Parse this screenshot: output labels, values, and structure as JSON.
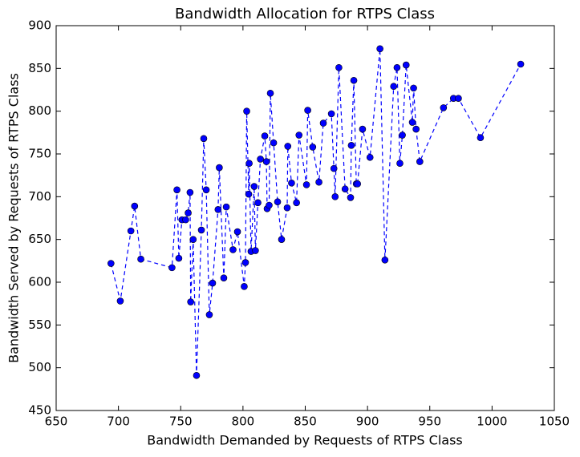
{
  "chart_data": {
    "type": "line",
    "title": "Bandwidth Allocation for RTPS Class",
    "xlabel": "Bandwidth Demanded by Requests of RTPS Class",
    "ylabel": "Bandwidth Served by Requests of RTPS Class",
    "x": [
      694,
      701.5,
      710,
      713,
      718,
      743,
      747,
      748.5,
      751,
      754,
      756,
      757.5,
      758,
      760,
      762.7,
      766.6,
      768.5,
      770.5,
      773,
      775.6,
      780,
      781,
      784.6,
      786.6,
      792,
      795.6,
      801,
      802,
      803,
      804.6,
      805,
      806.5,
      809,
      810,
      812,
      814,
      817.5,
      818.8,
      819.4,
      821,
      822,
      824.6,
      827.8,
      831,
      835.5,
      836,
      839,
      843,
      845,
      851,
      852,
      856,
      861,
      864.5,
      871,
      873,
      874,
      877,
      882,
      886.4,
      887,
      889,
      891,
      892,
      896,
      902,
      910,
      914,
      921,
      923.7,
      926,
      928,
      931,
      936,
      937,
      939,
      942,
      961,
      969,
      973,
      990.7,
      1023
    ],
    "values": [
      622,
      578,
      660,
      689,
      627,
      617,
      708,
      628,
      673,
      673,
      681,
      705,
      577,
      650,
      491,
      661,
      768,
      708,
      562,
      599,
      685,
      734,
      605,
      688,
      638,
      659,
      595,
      623,
      800,
      703,
      739,
      636,
      712,
      637,
      693,
      744,
      771,
      741,
      686,
      690,
      821,
      763,
      694,
      650,
      687,
      759,
      716,
      693,
      772,
      714,
      801,
      758,
      717,
      786,
      797,
      733,
      700,
      851,
      709,
      699,
      760,
      836,
      715,
      715,
      779,
      746,
      873,
      626,
      829,
      851,
      739,
      772,
      854,
      787,
      827,
      779,
      741,
      804,
      815,
      815,
      769,
      855
    ],
    "color": "#0000ff",
    "marker": "circle",
    "linestyle": "dashed",
    "xlim": [
      650,
      1050
    ],
    "ylim": [
      450,
      900
    ],
    "xticks": [
      650,
      700,
      750,
      800,
      850,
      900,
      950,
      1000,
      1050
    ],
    "yticks": [
      450,
      500,
      550,
      600,
      650,
      700,
      750,
      800,
      850,
      900
    ]
  }
}
